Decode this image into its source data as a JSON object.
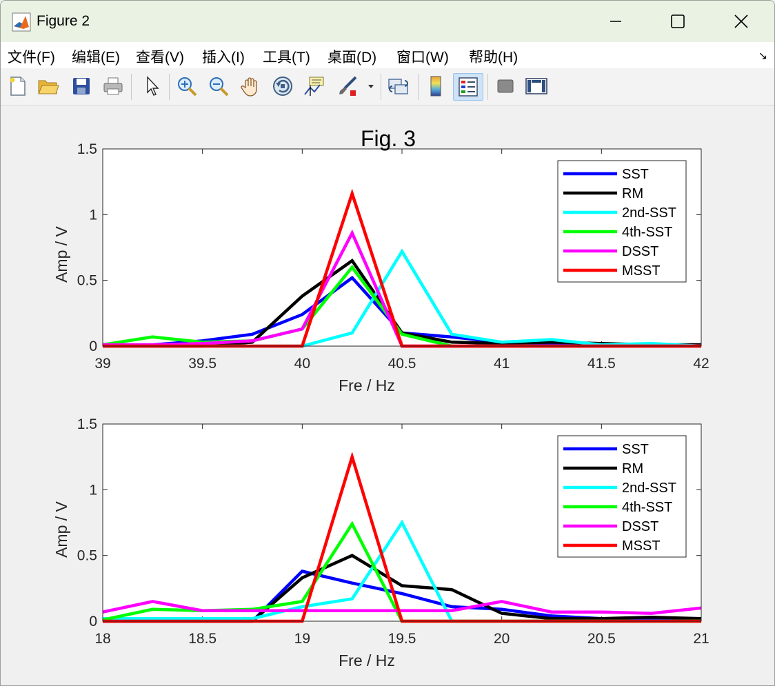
{
  "window": {
    "title": "Figure 2"
  },
  "menu": [
    "文件(F)",
    "编辑(E)",
    "查看(V)",
    "插入(I)",
    "工具(T)",
    "桌面(D)",
    "窗口(W)",
    "帮助(H)"
  ],
  "toolbar": {
    "icons": [
      "new-figure-icon",
      "open-file-icon",
      "save-icon",
      "print-icon",
      "pointer-icon",
      "zoom-in-icon",
      "zoom-out-icon",
      "pan-hand-icon",
      "rotate-3d-icon",
      "data-cursor-icon",
      "brush-icon",
      "link-plot-icon",
      "colorbar-icon",
      "legend-icon",
      "hide-plot-tools-icon",
      "show-plot-tools-icon"
    ],
    "active": "legend-icon"
  },
  "colors": {
    "SST": "#0000ff",
    "RM": "#000000",
    "2nd-SST": "#00ffff",
    "4th-SST": "#00ff00",
    "DSST": "#ff00ff",
    "MSST": "#ff0000"
  },
  "chart_data": [
    {
      "type": "line",
      "title": "Fig. 3",
      "xlabel": "Fre / Hz",
      "ylabel": "Amp / V",
      "xlim": [
        39,
        42
      ],
      "ylim": [
        0,
        1.5
      ],
      "xticks": [
        "39",
        "39.5",
        "40",
        "40.5",
        "41",
        "41.5",
        "42"
      ],
      "yticks": [
        "0",
        "0.5",
        "1",
        "1.5"
      ],
      "legend_position": "top-right",
      "x": [
        39,
        39.25,
        39.5,
        39.75,
        40,
        40.25,
        40.5,
        40.75,
        41,
        41.25,
        41.5,
        41.75,
        42
      ],
      "series": [
        {
          "name": "SST",
          "values": [
            0.01,
            0.01,
            0.04,
            0.09,
            0.24,
            0.52,
            0.1,
            0.07,
            0.03,
            0.02,
            0.01,
            0.01,
            0.01
          ]
        },
        {
          "name": "RM",
          "values": [
            0.0,
            0.0,
            0.0,
            0.03,
            0.38,
            0.65,
            0.1,
            0.03,
            0.02,
            0.03,
            0.02,
            0.01,
            0.01
          ]
        },
        {
          "name": "2nd-SST",
          "values": [
            0.0,
            0.0,
            0.0,
            0.0,
            0.0,
            0.1,
            0.72,
            0.09,
            0.03,
            0.05,
            0.01,
            0.02,
            0.0
          ]
        },
        {
          "name": "4th-SST",
          "values": [
            0.01,
            0.07,
            0.03,
            0.04,
            0.13,
            0.6,
            0.09,
            0.0,
            0.0,
            0.0,
            0.0,
            0.0,
            0.0
          ]
        },
        {
          "name": "DSST",
          "values": [
            0.01,
            0.01,
            0.02,
            0.04,
            0.13,
            0.86,
            0.0,
            0.0,
            0.0,
            0.0,
            0.0,
            0.0,
            0.0
          ]
        },
        {
          "name": "MSST",
          "values": [
            0.0,
            0.0,
            0.0,
            0.0,
            0.0,
            1.16,
            0.0,
            0.0,
            0.0,
            0.0,
            0.0,
            0.0,
            0.0
          ]
        }
      ]
    },
    {
      "type": "line",
      "title": "",
      "xlabel": "Fre / Hz",
      "ylabel": "Amp / V",
      "xlim": [
        18,
        21
      ],
      "ylim": [
        0,
        1.5
      ],
      "xticks": [
        "18",
        "18.5",
        "19",
        "19.5",
        "20",
        "20.5",
        "21"
      ],
      "yticks": [
        "0",
        "0.5",
        "1",
        "1.5"
      ],
      "legend_position": "top-right",
      "x": [
        18,
        18.25,
        18.5,
        18.75,
        19,
        19.25,
        19.5,
        19.75,
        20,
        20.25,
        20.5,
        20.75,
        21
      ],
      "series": [
        {
          "name": "SST",
          "values": [
            0.0,
            0.0,
            0.0,
            0.0,
            0.38,
            0.29,
            0.21,
            0.11,
            0.09,
            0.04,
            0.02,
            0.01,
            0.02
          ]
        },
        {
          "name": "RM",
          "values": [
            0.0,
            0.0,
            0.0,
            0.0,
            0.33,
            0.5,
            0.27,
            0.24,
            0.06,
            0.02,
            0.02,
            0.03,
            0.02
          ]
        },
        {
          "name": "2nd-SST",
          "values": [
            0.02,
            0.02,
            0.02,
            0.02,
            0.11,
            0.17,
            0.75,
            0.0,
            0.0,
            0.0,
            0.0,
            0.0,
            0.0
          ]
        },
        {
          "name": "4th-SST",
          "values": [
            0.01,
            0.09,
            0.08,
            0.09,
            0.15,
            0.74,
            0.0,
            0.0,
            0.0,
            0.0,
            0.0,
            0.0,
            0.0
          ]
        },
        {
          "name": "DSST",
          "values": [
            0.07,
            0.15,
            0.08,
            0.08,
            0.08,
            0.08,
            0.08,
            0.08,
            0.15,
            0.07,
            0.07,
            0.06,
            0.1
          ]
        },
        {
          "name": "MSST",
          "values": [
            0.0,
            0.0,
            0.0,
            0.0,
            0.0,
            1.25,
            0.0,
            0.0,
            0.0,
            0.0,
            0.0,
            0.0,
            0.0
          ]
        }
      ]
    }
  ]
}
